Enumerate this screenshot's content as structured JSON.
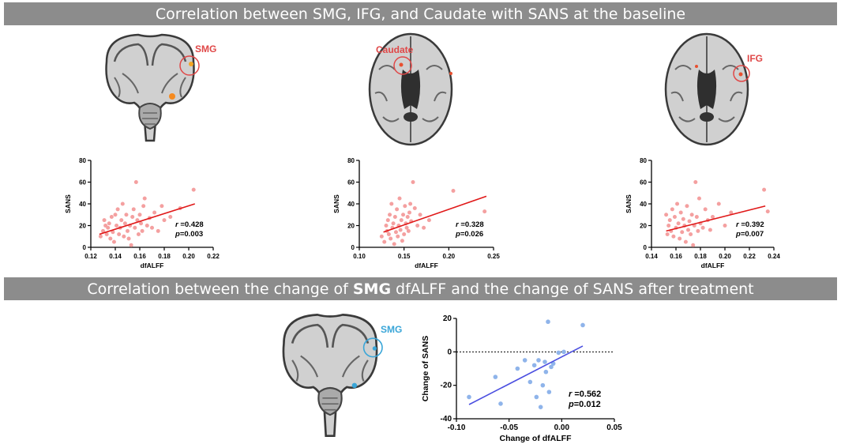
{
  "banners": {
    "top": "Correlation between SMG, IFG, and Caudate with SANS at the baseline",
    "bottom_pre": "Correlation between the change of",
    "bottom_bold": "SMG",
    "bottom_post": "dfALFF and the change of SANS after treatment"
  },
  "brain_labels": {
    "smg_top": "SMG",
    "caudate": "Caudate",
    "ifg": "IFG",
    "smg_bottom": "SMG"
  },
  "colors": {
    "banner": "#8c8c8c",
    "baseline_points": "#f4a0a0",
    "baseline_fit": "#e01818",
    "change_points": "#8fb4ea",
    "change_fit": "#4a4ee0",
    "label_red": "#e04848",
    "label_blue": "#3aa6d8"
  },
  "chart_data": [
    {
      "id": "smg",
      "type": "scatter",
      "xlabel": "dfALFF",
      "ylabel": "SANS",
      "xlim": [
        0.12,
        0.22
      ],
      "ylim": [
        0,
        80
      ],
      "xticks": [
        "0.12",
        "0.14",
        "0.16",
        "0.18",
        "0.20",
        "0.22"
      ],
      "yticks": [
        "0",
        "20",
        "40",
        "60",
        "80"
      ],
      "stats": {
        "r": "=0.428",
        "p": "=0.003"
      },
      "fit": [
        [
          0.127,
          12
        ],
        [
          0.205,
          40
        ]
      ],
      "points": [
        [
          0.128,
          10
        ],
        [
          0.13,
          15
        ],
        [
          0.131,
          25
        ],
        [
          0.132,
          20
        ],
        [
          0.133,
          12
        ],
        [
          0.134,
          18
        ],
        [
          0.135,
          22
        ],
        [
          0.136,
          8
        ],
        [
          0.137,
          28
        ],
        [
          0.138,
          14
        ],
        [
          0.139,
          5
        ],
        [
          0.14,
          30
        ],
        [
          0.141,
          20
        ],
        [
          0.142,
          35
        ],
        [
          0.143,
          12
        ],
        [
          0.144,
          18
        ],
        [
          0.145,
          25
        ],
        [
          0.146,
          40
        ],
        [
          0.147,
          10
        ],
        [
          0.148,
          22
        ],
        [
          0.149,
          30
        ],
        [
          0.15,
          15
        ],
        [
          0.151,
          8
        ],
        [
          0.152,
          20
        ],
        [
          0.153,
          2
        ],
        [
          0.154,
          28
        ],
        [
          0.155,
          35
        ],
        [
          0.156,
          18
        ],
        [
          0.157,
          60
        ],
        [
          0.158,
          25
        ],
        [
          0.159,
          12
        ],
        [
          0.16,
          30
        ],
        [
          0.161,
          22
        ],
        [
          0.162,
          15
        ],
        [
          0.163,
          38
        ],
        [
          0.164,
          45
        ],
        [
          0.166,
          20
        ],
        [
          0.168,
          27
        ],
        [
          0.17,
          18
        ],
        [
          0.172,
          32
        ],
        [
          0.175,
          15
        ],
        [
          0.178,
          38
        ],
        [
          0.18,
          25
        ],
        [
          0.185,
          28
        ],
        [
          0.193,
          36
        ],
        [
          0.204,
          53
        ]
      ]
    },
    {
      "id": "caudate",
      "type": "scatter",
      "xlabel": "dfALFF",
      "ylabel": "SANS",
      "xlim": [
        0.1,
        0.25
      ],
      "ylim": [
        0,
        80
      ],
      "xticks": [
        "0.10",
        "0.15",
        "0.20",
        "0.25"
      ],
      "yticks": [
        "0",
        "20",
        "40",
        "60",
        "80"
      ],
      "stats": {
        "r": "=0.328",
        "p": "=0.026"
      },
      "fit": [
        [
          0.127,
          14
        ],
        [
          0.242,
          47
        ]
      ],
      "points": [
        [
          0.125,
          10
        ],
        [
          0.128,
          5
        ],
        [
          0.13,
          20
        ],
        [
          0.131,
          15
        ],
        [
          0.132,
          25
        ],
        [
          0.133,
          12
        ],
        [
          0.134,
          30
        ],
        [
          0.135,
          8
        ],
        [
          0.136,
          40
        ],
        [
          0.137,
          18
        ],
        [
          0.138,
          22
        ],
        [
          0.139,
          3
        ],
        [
          0.14,
          28
        ],
        [
          0.141,
          14
        ],
        [
          0.142,
          35
        ],
        [
          0.143,
          10
        ],
        [
          0.144,
          20
        ],
        [
          0.145,
          45
        ],
        [
          0.146,
          16
        ],
        [
          0.147,
          25
        ],
        [
          0.148,
          6
        ],
        [
          0.149,
          30
        ],
        [
          0.15,
          12
        ],
        [
          0.151,
          38
        ],
        [
          0.152,
          22
        ],
        [
          0.153,
          18
        ],
        [
          0.154,
          28
        ],
        [
          0.155,
          15
        ],
        [
          0.156,
          32
        ],
        [
          0.157,
          40
        ],
        [
          0.158,
          24
        ],
        [
          0.16,
          60
        ],
        [
          0.162,
          36
        ],
        [
          0.165,
          20
        ],
        [
          0.168,
          30
        ],
        [
          0.172,
          18
        ],
        [
          0.178,
          25
        ],
        [
          0.205,
          52
        ],
        [
          0.24,
          33
        ]
      ]
    },
    {
      "id": "ifg",
      "type": "scatter",
      "xlabel": "dfALFF",
      "ylabel": "SANS",
      "xlim": [
        0.14,
        0.24
      ],
      "ylim": [
        0,
        80
      ],
      "xticks": [
        "0.14",
        "0.16",
        "0.18",
        "0.20",
        "0.22",
        "0.24"
      ],
      "yticks": [
        "0",
        "20",
        "40",
        "60",
        "80"
      ],
      "stats": {
        "r": "=0.392",
        "p": "=0.007"
      },
      "fit": [
        [
          0.152,
          15
        ],
        [
          0.233,
          38
        ]
      ],
      "points": [
        [
          0.152,
          30
        ],
        [
          0.153,
          12
        ],
        [
          0.154,
          20
        ],
        [
          0.155,
          25
        ],
        [
          0.156,
          15
        ],
        [
          0.157,
          35
        ],
        [
          0.158,
          10
        ],
        [
          0.159,
          28
        ],
        [
          0.16,
          18
        ],
        [
          0.161,
          40
        ],
        [
          0.162,
          22
        ],
        [
          0.163,
          8
        ],
        [
          0.164,
          32
        ],
        [
          0.165,
          14
        ],
        [
          0.166,
          26
        ],
        [
          0.167,
          20
        ],
        [
          0.168,
          5
        ],
        [
          0.169,
          38
        ],
        [
          0.17,
          16
        ],
        [
          0.171,
          24
        ],
        [
          0.172,
          12
        ],
        [
          0.173,
          30
        ],
        [
          0.174,
          2
        ],
        [
          0.175,
          20
        ],
        [
          0.176,
          60
        ],
        [
          0.177,
          28
        ],
        [
          0.178,
          15
        ],
        [
          0.179,
          45
        ],
        [
          0.18,
          22
        ],
        [
          0.182,
          18
        ],
        [
          0.184,
          35
        ],
        [
          0.186,
          25
        ],
        [
          0.188,
          16
        ],
        [
          0.19,
          28
        ],
        [
          0.195,
          40
        ],
        [
          0.2,
          20
        ],
        [
          0.205,
          32
        ],
        [
          0.232,
          53
        ],
        [
          0.235,
          33
        ]
      ]
    },
    {
      "id": "change",
      "type": "scatter",
      "xlabel": "Change of dfALFF",
      "ylabel": "Change of SANS",
      "xlim": [
        -0.1,
        0.05
      ],
      "ylim": [
        -40,
        20
      ],
      "xticks": [
        "-0.10",
        "-0.05",
        "0.00",
        "0.05"
      ],
      "yticks": [
        "-40",
        "-20",
        "0",
        "20"
      ],
      "reference_line_y": 0,
      "stats": {
        "r": "=0.562",
        "p": "=0.012"
      },
      "fit": [
        [
          -0.088,
          -31.5
        ],
        [
          0.02,
          3.5
        ]
      ],
      "points": [
        [
          -0.088,
          -27
        ],
        [
          -0.063,
          -15
        ],
        [
          -0.058,
          -31
        ],
        [
          -0.042,
          -10
        ],
        [
          -0.035,
          -5
        ],
        [
          -0.03,
          -18
        ],
        [
          -0.026,
          -8
        ],
        [
          -0.024,
          -27
        ],
        [
          -0.022,
          -5
        ],
        [
          -0.02,
          -33
        ],
        [
          -0.018,
          -20
        ],
        [
          -0.016,
          -6
        ],
        [
          -0.015,
          -12
        ],
        [
          -0.013,
          18
        ],
        [
          -0.012,
          -24
        ],
        [
          -0.01,
          -9
        ],
        [
          -0.008,
          -7
        ],
        [
          -0.003,
          -0.5
        ],
        [
          0.002,
          0
        ],
        [
          0.02,
          16
        ]
      ]
    }
  ]
}
